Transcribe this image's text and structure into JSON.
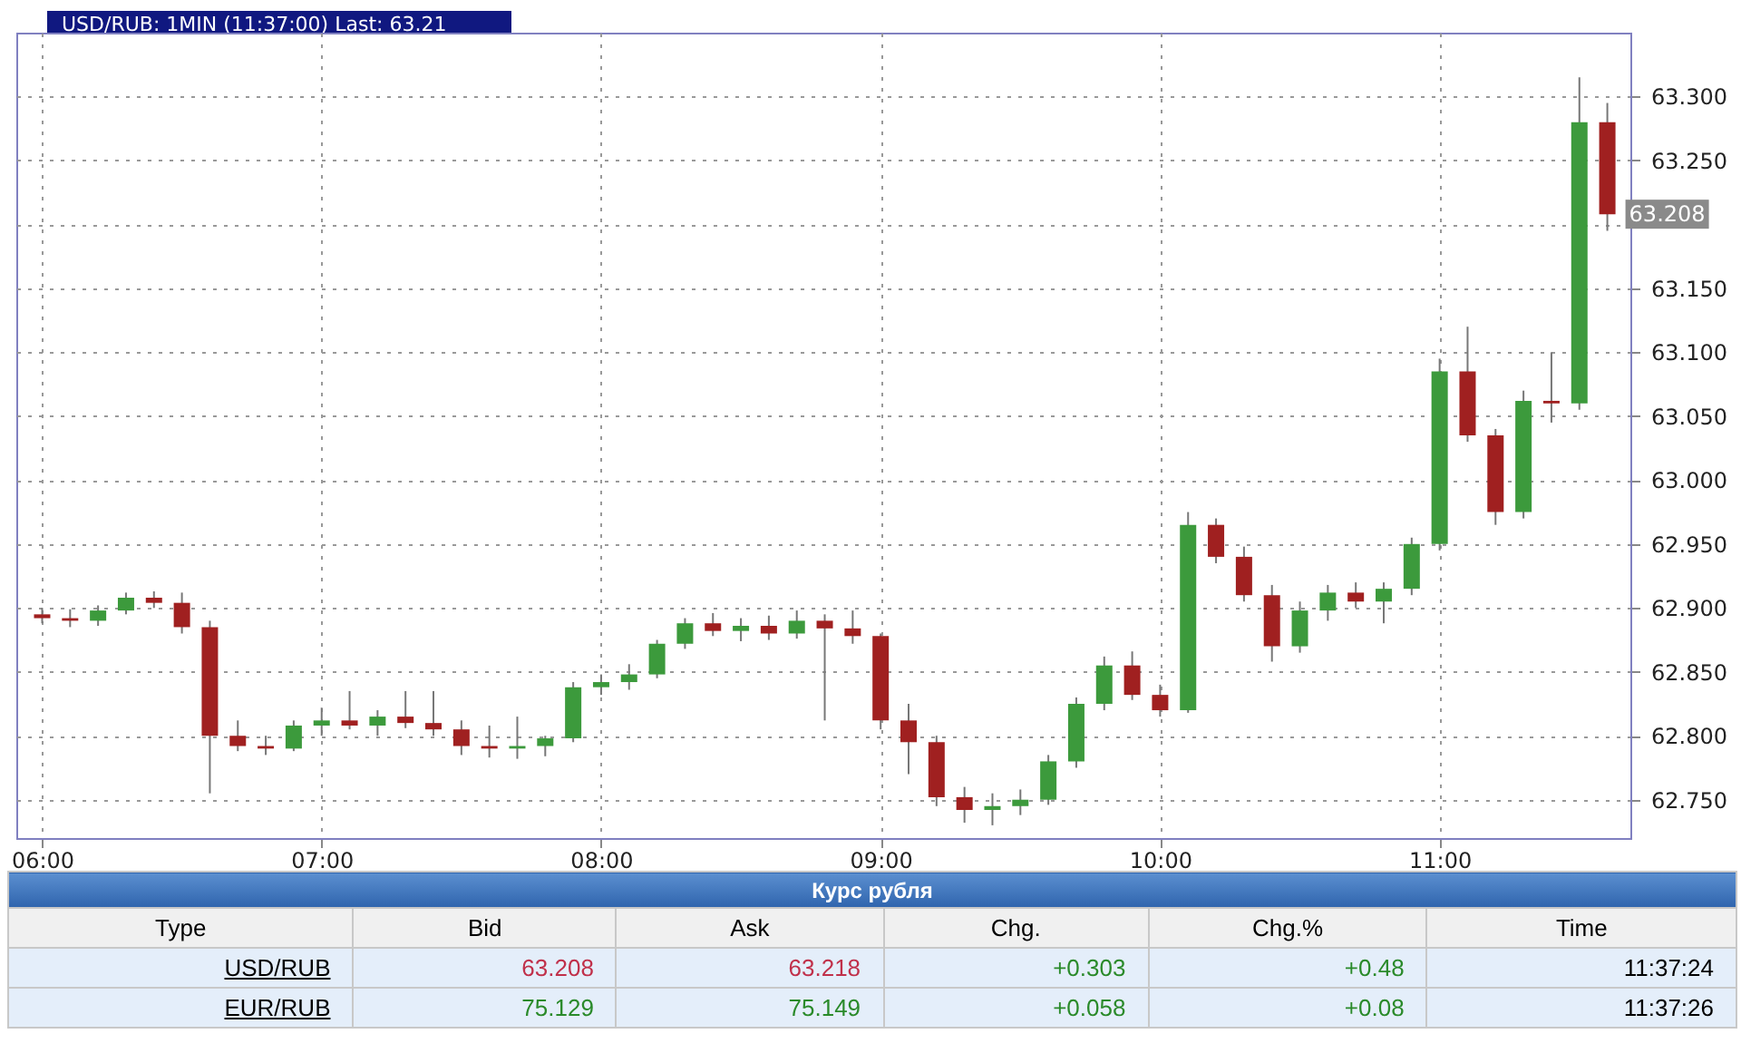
{
  "chart_data": [
    {
      "type": "candlestick",
      "title": "USD/RUB: 1MIN (11:37:00) Last: 63.21",
      "x": [
        6.0,
        6.1,
        6.2,
        6.3,
        6.4,
        6.5,
        6.6,
        6.7,
        6.8,
        6.9,
        7.0,
        7.1,
        7.2,
        7.3,
        7.4,
        7.5,
        7.6,
        7.7,
        7.8,
        7.9,
        8.0,
        8.1,
        8.2,
        8.3,
        8.4,
        8.5,
        8.6,
        8.7,
        8.8,
        8.9,
        9.0,
        9.1,
        9.2,
        9.3,
        9.4,
        9.5,
        9.6,
        9.7,
        9.8,
        9.9,
        10.0,
        10.1,
        10.2,
        10.3,
        10.4,
        10.5,
        10.6,
        10.7,
        10.8,
        10.9,
        11.0,
        11.1,
        11.2,
        11.3,
        11.4,
        11.5,
        11.6
      ],
      "ohlc": [
        [
          62.895,
          62.9,
          62.888,
          62.892
        ],
        [
          62.892,
          62.899,
          62.885,
          62.89
        ],
        [
          62.89,
          62.902,
          62.886,
          62.898
        ],
        [
          62.898,
          62.912,
          62.895,
          62.908
        ],
        [
          62.908,
          62.913,
          62.9,
          62.904
        ],
        [
          62.904,
          62.912,
          62.88,
          62.885
        ],
        [
          62.885,
          62.89,
          62.755,
          62.8
        ],
        [
          62.8,
          62.812,
          62.788,
          62.792
        ],
        [
          62.792,
          62.8,
          62.785,
          62.79
        ],
        [
          62.79,
          62.812,
          62.788,
          62.808
        ],
        [
          62.808,
          62.822,
          62.8,
          62.812
        ],
        [
          62.812,
          62.835,
          62.805,
          62.808
        ],
        [
          62.808,
          62.82,
          62.8,
          62.815
        ],
        [
          62.815,
          62.835,
          62.806,
          62.81
        ],
        [
          62.81,
          62.835,
          62.8,
          62.805
        ],
        [
          62.805,
          62.812,
          62.785,
          62.792
        ],
        [
          62.792,
          62.808,
          62.783,
          62.79
        ],
        [
          62.79,
          62.815,
          62.782,
          62.792
        ],
        [
          62.792,
          62.8,
          62.784,
          62.798
        ],
        [
          62.798,
          62.842,
          62.795,
          62.838
        ],
        [
          62.838,
          62.848,
          62.832,
          62.842
        ],
        [
          62.842,
          62.856,
          62.836,
          62.848
        ],
        [
          62.848,
          62.875,
          62.845,
          62.872
        ],
        [
          62.872,
          62.892,
          62.868,
          62.888
        ],
        [
          62.888,
          62.896,
          62.878,
          62.882
        ],
        [
          62.882,
          62.892,
          62.874,
          62.886
        ],
        [
          62.886,
          62.894,
          62.875,
          62.88
        ],
        [
          62.88,
          62.898,
          62.876,
          62.89
        ],
        [
          62.89,
          62.895,
          62.812,
          62.884
        ],
        [
          62.884,
          62.898,
          62.872,
          62.878
        ],
        [
          62.878,
          62.88,
          62.805,
          62.812
        ],
        [
          62.812,
          62.825,
          62.77,
          62.795
        ],
        [
          62.795,
          62.8,
          62.745,
          62.752
        ],
        [
          62.752,
          62.76,
          62.732,
          62.742
        ],
        [
          62.742,
          62.755,
          62.73,
          62.745
        ],
        [
          62.745,
          62.758,
          62.738,
          62.75
        ],
        [
          62.75,
          62.785,
          62.746,
          62.78
        ],
        [
          62.78,
          62.83,
          62.775,
          62.825
        ],
        [
          62.825,
          62.862,
          62.82,
          62.855
        ],
        [
          62.855,
          62.866,
          62.828,
          62.832
        ],
        [
          62.832,
          62.84,
          62.815,
          62.82
        ],
        [
          62.82,
          62.975,
          62.818,
          62.965
        ],
        [
          62.965,
          62.97,
          62.935,
          62.94
        ],
        [
          62.94,
          62.948,
          62.905,
          62.91
        ],
        [
          62.91,
          62.918,
          62.858,
          62.87
        ],
        [
          62.87,
          62.905,
          62.865,
          62.898
        ],
        [
          62.898,
          62.918,
          62.89,
          62.912
        ],
        [
          62.912,
          62.92,
          62.9,
          62.905
        ],
        [
          62.905,
          62.92,
          62.888,
          62.915
        ],
        [
          62.915,
          62.955,
          62.91,
          62.95
        ],
        [
          62.95,
          63.095,
          62.945,
          63.085
        ],
        [
          63.085,
          63.12,
          63.03,
          63.035
        ],
        [
          63.035,
          63.04,
          62.965,
          62.975
        ],
        [
          62.975,
          63.07,
          62.97,
          63.062
        ],
        [
          63.062,
          63.1,
          63.045,
          63.06
        ],
        [
          63.06,
          63.315,
          63.055,
          63.28
        ],
        [
          63.28,
          63.295,
          63.195,
          63.208
        ]
      ],
      "colors": [
        "#a02020",
        "#a02020",
        "#3c9a3c",
        "#3c9a3c",
        "#a02020",
        "#a02020",
        "#a02020",
        "#a02020",
        "#a02020",
        "#3c9a3c",
        "#3c9a3c",
        "#a02020",
        "#3c9a3c",
        "#a02020",
        "#a02020",
        "#a02020",
        "#a02020",
        "#3c9a3c",
        "#3c9a3c",
        "#3c9a3c",
        "#3c9a3c",
        "#3c9a3c",
        "#3c9a3c",
        "#3c9a3c",
        "#a02020",
        "#3c9a3c",
        "#a02020",
        "#3c9a3c",
        "#a02020",
        "#a02020",
        "#a02020",
        "#a02020",
        "#a02020",
        "#a02020",
        "#3c9a3c",
        "#3c9a3c",
        "#3c9a3c",
        "#3c9a3c",
        "#3c9a3c",
        "#a02020",
        "#a02020",
        "#3c9a3c",
        "#a02020",
        "#a02020",
        "#a02020",
        "#3c9a3c",
        "#3c9a3c",
        "#a02020",
        "#3c9a3c",
        "#3c9a3c",
        "#3c9a3c",
        "#a02020",
        "#a02020",
        "#3c9a3c",
        "#a02020",
        "#3c9a3c",
        "#a02020"
      ],
      "xlim": [
        5.94,
        11.65
      ],
      "xticks": [
        {
          "value": 6,
          "label": "06:00"
        },
        {
          "value": 7,
          "label": "07:00"
        },
        {
          "value": 8,
          "label": "08:00"
        },
        {
          "value": 9,
          "label": "09:00"
        },
        {
          "value": 10,
          "label": "10:00"
        },
        {
          "value": 11,
          "label": "11:00"
        }
      ],
      "ylim": [
        62.72,
        63.35
      ],
      "yticks": [
        {
          "value": 62.75,
          "label": "62.750"
        },
        {
          "value": 62.8,
          "label": "62.800"
        },
        {
          "value": 62.85,
          "label": "62.850"
        },
        {
          "value": 62.9,
          "label": "62.900"
        },
        {
          "value": 62.95,
          "label": "62.950"
        },
        {
          "value": 63.0,
          "label": "63.000"
        },
        {
          "value": 63.05,
          "label": "63.050"
        },
        {
          "value": 63.1,
          "label": "63.100"
        },
        {
          "value": 63.15,
          "label": "63.150"
        },
        {
          "value": 63.2,
          "label": null
        },
        {
          "value": 63.25,
          "label": "63.250"
        },
        {
          "value": 63.3,
          "label": "63.300"
        }
      ],
      "grid": true,
      "annotations": [
        {
          "text": "63.208",
          "x": 11.6,
          "y": 63.208
        }
      ]
    },
    {
      "type": "other",
      "title": "Курс рубля",
      "annotations": [
        "Type",
        "Bid",
        "Ask",
        "Chg.",
        "Chg.%",
        "Time",
        "USD/RUB",
        "63.208",
        "63.218",
        "+0.303",
        "+0.48",
        "11:37:24",
        "EUR/RUB",
        "75.129",
        "75.149",
        "+0.058",
        "+0.08",
        "11:37:26"
      ]
    }
  ]
}
